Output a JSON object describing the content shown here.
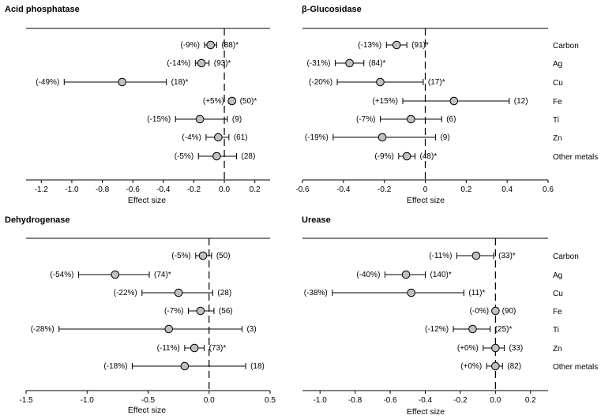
{
  "chart_data": [
    {
      "type": "forest",
      "title": "Acid phosphatase",
      "xlabel": "Effect size",
      "xlim": [
        -1.3,
        0.3
      ],
      "xticks": [
        -1.2,
        -1.0,
        -0.8,
        -0.6,
        -0.4,
        -0.2,
        0.0,
        0.2
      ],
      "xtick_labels": [
        "-1.2",
        "-1.0",
        "-0.8",
        "-0.6",
        "-0.4",
        "-0.2",
        "0.0",
        "0.2"
      ],
      "categories": [
        "Carbon",
        "Ag",
        "Cu",
        "Fe",
        "Ti",
        "Zn",
        "Other metals"
      ],
      "show_categories": false,
      "points": [
        {
          "value": -0.09,
          "lo": -0.13,
          "hi": -0.05,
          "pct": "(-9%)",
          "n": "(88)*"
        },
        {
          "value": -0.15,
          "lo": -0.19,
          "hi": -0.1,
          "pct": "(-14%)",
          "n": "(93)*"
        },
        {
          "value": -0.67,
          "lo": -1.05,
          "hi": -0.38,
          "pct": "(-49%)",
          "n": "(18)*"
        },
        {
          "value": 0.05,
          "lo": 0.03,
          "hi": 0.07,
          "pct": "(+5%)",
          "n": "(50)*"
        },
        {
          "value": -0.16,
          "lo": -0.32,
          "hi": 0.02,
          "pct": "(-15%)",
          "n": "(9)"
        },
        {
          "value": -0.04,
          "lo": -0.12,
          "hi": 0.03,
          "pct": "(-4%)",
          "n": "(61)"
        },
        {
          "value": -0.05,
          "lo": -0.17,
          "hi": 0.08,
          "pct": "(-5%)",
          "n": "(28)"
        }
      ]
    },
    {
      "type": "forest",
      "title": "β-Glucosidase",
      "xlabel": "Effect size",
      "xlim": [
        -0.6,
        0.6
      ],
      "xticks": [
        -0.6,
        -0.4,
        -0.2,
        0.0,
        0.2,
        0.4,
        0.6
      ],
      "xtick_labels": [
        "-0.6",
        "-0.4",
        "-0.2",
        "0",
        "0.2",
        "0.4",
        "0.6"
      ],
      "categories": [
        "Carbon",
        "Ag",
        "Cu",
        "Fe",
        "Ti",
        "Zn",
        "Other metals"
      ],
      "show_categories": true,
      "points": [
        {
          "value": -0.14,
          "lo": -0.19,
          "hi": -0.09,
          "pct": "(-13%)",
          "n": "(91)*"
        },
        {
          "value": -0.37,
          "lo": -0.44,
          "hi": -0.3,
          "pct": "(-31%)",
          "n": "(84)*"
        },
        {
          "value": -0.22,
          "lo": -0.43,
          "hi": -0.01,
          "pct": "(-20%)",
          "n": "(17)*"
        },
        {
          "value": 0.14,
          "lo": -0.11,
          "hi": 0.41,
          "pct": "(+15%)",
          "n": "(12)"
        },
        {
          "value": -0.07,
          "lo": -0.22,
          "hi": 0.08,
          "pct": "(-7%)",
          "n": "(6)"
        },
        {
          "value": -0.21,
          "lo": -0.45,
          "hi": 0.05,
          "pct": "(-19%)",
          "n": "(9)"
        },
        {
          "value": -0.09,
          "lo": -0.13,
          "hi": -0.05,
          "pct": "(-9%)",
          "n": "(48)*"
        }
      ]
    },
    {
      "type": "forest",
      "title": "Dehydrogenase",
      "xlabel": "Effect size",
      "xlim": [
        -1.5,
        0.5
      ],
      "xticks": [
        -1.5,
        -1.0,
        -0.5,
        0.0,
        0.5
      ],
      "xtick_labels": [
        "-1.5",
        "-1.0",
        "-0.5",
        "0.0",
        "0.5"
      ],
      "categories": [
        "Carbon",
        "Ag",
        "Cu",
        "Fe",
        "Ti",
        "Zn",
        "Other metals"
      ],
      "show_categories": false,
      "points": [
        {
          "value": -0.05,
          "lo": -0.11,
          "hi": 0.02,
          "pct": "(-5%)",
          "n": "(50)"
        },
        {
          "value": -0.77,
          "lo": -1.07,
          "hi": -0.49,
          "pct": "(-54%)",
          "n": "(74)*"
        },
        {
          "value": -0.25,
          "lo": -0.55,
          "hi": 0.03,
          "pct": "(-22%)",
          "n": "(28)"
        },
        {
          "value": -0.07,
          "lo": -0.17,
          "hi": 0.04,
          "pct": "(-7%)",
          "n": "(56)"
        },
        {
          "value": -0.33,
          "lo": -1.23,
          "hi": 0.27,
          "pct": "(-28%)",
          "n": "(3)"
        },
        {
          "value": -0.12,
          "lo": -0.2,
          "hi": -0.04,
          "pct": "(-11%)",
          "n": "(73)*"
        },
        {
          "value": -0.2,
          "lo": -0.63,
          "hi": 0.3,
          "pct": "(-18%)",
          "n": "(18)"
        }
      ]
    },
    {
      "type": "forest",
      "title": "Urease",
      "xlabel": "Effect size",
      "xlim": [
        -1.1,
        0.3
      ],
      "xticks": [
        -1.0,
        -0.8,
        -0.6,
        -0.4,
        -0.2,
        0.0,
        0.2
      ],
      "xtick_labels": [
        "-1.0",
        "-0.8",
        "-0.6",
        "-0.4",
        "-0.2",
        "0.0",
        "0.2"
      ],
      "categories": [
        "Carbon",
        "Ag",
        "Cu",
        "Fe",
        "Ti",
        "Zn",
        "Other metals"
      ],
      "show_categories": true,
      "points": [
        {
          "value": -0.11,
          "lo": -0.22,
          "hi": -0.01,
          "pct": "(-11%)",
          "n": "(33)*"
        },
        {
          "value": -0.51,
          "lo": -0.63,
          "hi": -0.4,
          "pct": "(-40%)",
          "n": "(140)*"
        },
        {
          "value": -0.48,
          "lo": -0.93,
          "hi": -0.18,
          "pct": "(-38%)",
          "n": "(11)*"
        },
        {
          "value": 0.0,
          "lo": -0.01,
          "hi": 0.01,
          "pct": "(-0%)",
          "n": "(90)"
        },
        {
          "value": -0.13,
          "lo": -0.24,
          "hi": -0.03,
          "pct": "(-12%)",
          "n": "(25)*"
        },
        {
          "value": 0.0,
          "lo": -0.07,
          "hi": 0.05,
          "pct": "(+0%)",
          "n": "(33)"
        },
        {
          "value": 0.0,
          "lo": -0.05,
          "hi": 0.04,
          "pct": "(+0%)",
          "n": "(82)"
        }
      ]
    }
  ]
}
